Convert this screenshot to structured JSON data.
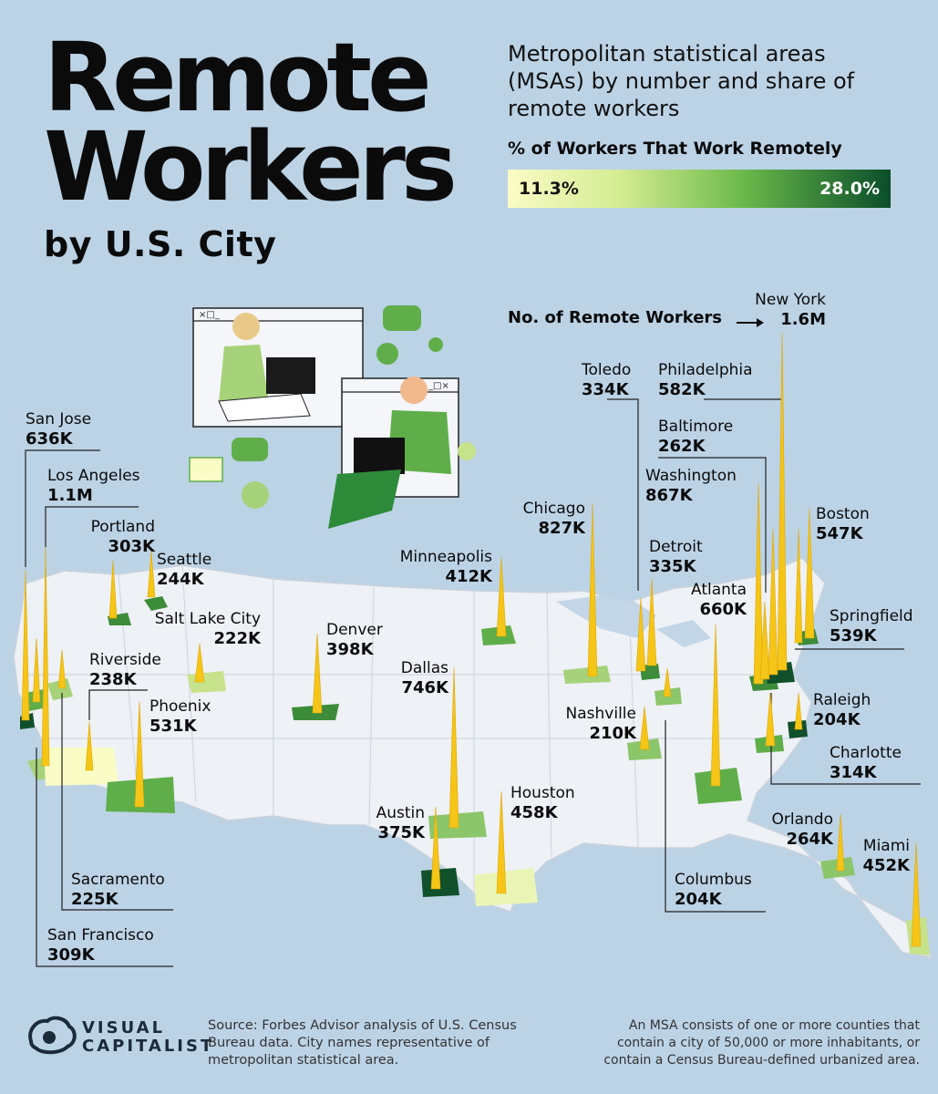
{
  "header": {
    "title_line1": "Remote",
    "title_line2": "Workers",
    "title_line3": "by U.S. City",
    "subtitle": "Metropolitan statistical areas (MSAs) by number and share of remote workers"
  },
  "legend": {
    "title": "% of Workers That Work Remotely",
    "min_label": "11.3%",
    "max_label": "28.0%",
    "min_color": "#fafcc6",
    "max_color": "#0a4e2a",
    "count_label": "No. of Remote Workers"
  },
  "colors": {
    "background": "#bcd3e6",
    "land": "#eef1f5",
    "spike": "#f5c518"
  },
  "cities": [
    {
      "key": "san-jose",
      "name": "San Jose",
      "value": "636K"
    },
    {
      "key": "los-angeles",
      "name": "Los Angeles",
      "value": "1.1M"
    },
    {
      "key": "portland",
      "name": "Portland",
      "value": "303K"
    },
    {
      "key": "seattle",
      "name": "Seattle",
      "value": "244K"
    },
    {
      "key": "salt-lake-city",
      "name": "Salt Lake City",
      "value": "222K"
    },
    {
      "key": "riverside",
      "name": "Riverside",
      "value": "238K"
    },
    {
      "key": "phoenix",
      "name": "Phoenix",
      "value": "531K"
    },
    {
      "key": "denver",
      "name": "Denver",
      "value": "398K"
    },
    {
      "key": "dallas",
      "name": "Dallas",
      "value": "746K"
    },
    {
      "key": "minneapolis",
      "name": "Minneapolis",
      "value": "412K"
    },
    {
      "key": "chicago",
      "name": "Chicago",
      "value": "827K"
    },
    {
      "key": "toledo",
      "name": "Toledo",
      "value": "334K"
    },
    {
      "key": "philadelphia",
      "name": "Philadelphia",
      "value": "582K"
    },
    {
      "key": "new-york",
      "name": "New York",
      "value": "1.6M"
    },
    {
      "key": "baltimore",
      "name": "Baltimore",
      "value": "262K"
    },
    {
      "key": "washington",
      "name": "Washington",
      "value": "867K"
    },
    {
      "key": "boston",
      "name": "Boston",
      "value": "547K"
    },
    {
      "key": "detroit",
      "name": "Detroit",
      "value": "335K"
    },
    {
      "key": "atlanta",
      "name": "Atlanta",
      "value": "660K"
    },
    {
      "key": "springfield",
      "name": "Springfield",
      "value": "539K"
    },
    {
      "key": "raleigh",
      "name": "Raleigh",
      "value": "204K"
    },
    {
      "key": "nashville",
      "name": "Nashville",
      "value": "210K"
    },
    {
      "key": "charlotte",
      "name": "Charlotte",
      "value": "314K"
    },
    {
      "key": "houston",
      "name": "Houston",
      "value": "458K"
    },
    {
      "key": "austin",
      "name": "Austin",
      "value": "375K"
    },
    {
      "key": "orlando",
      "name": "Orlando",
      "value": "264K"
    },
    {
      "key": "miami",
      "name": "Miami",
      "value": "452K"
    },
    {
      "key": "columbus",
      "name": "Columbus",
      "value": "204K"
    },
    {
      "key": "sacramento",
      "name": "Sacramento",
      "value": "225K"
    },
    {
      "key": "san-francisco",
      "name": "San Francisco",
      "value": "309K"
    }
  ],
  "footer": {
    "brand_line1": "VISUAL",
    "brand_line2": "CAPITALIST",
    "source": "Source: Forbes Advisor analysis of U.S. Census Bureau data. City names representative of metropolitan statistical area.",
    "note": "An MSA consists of one or more counties that contain a city of 50,000 or more inhabitants, or contain a Census Bureau-defined urbanized area."
  }
}
